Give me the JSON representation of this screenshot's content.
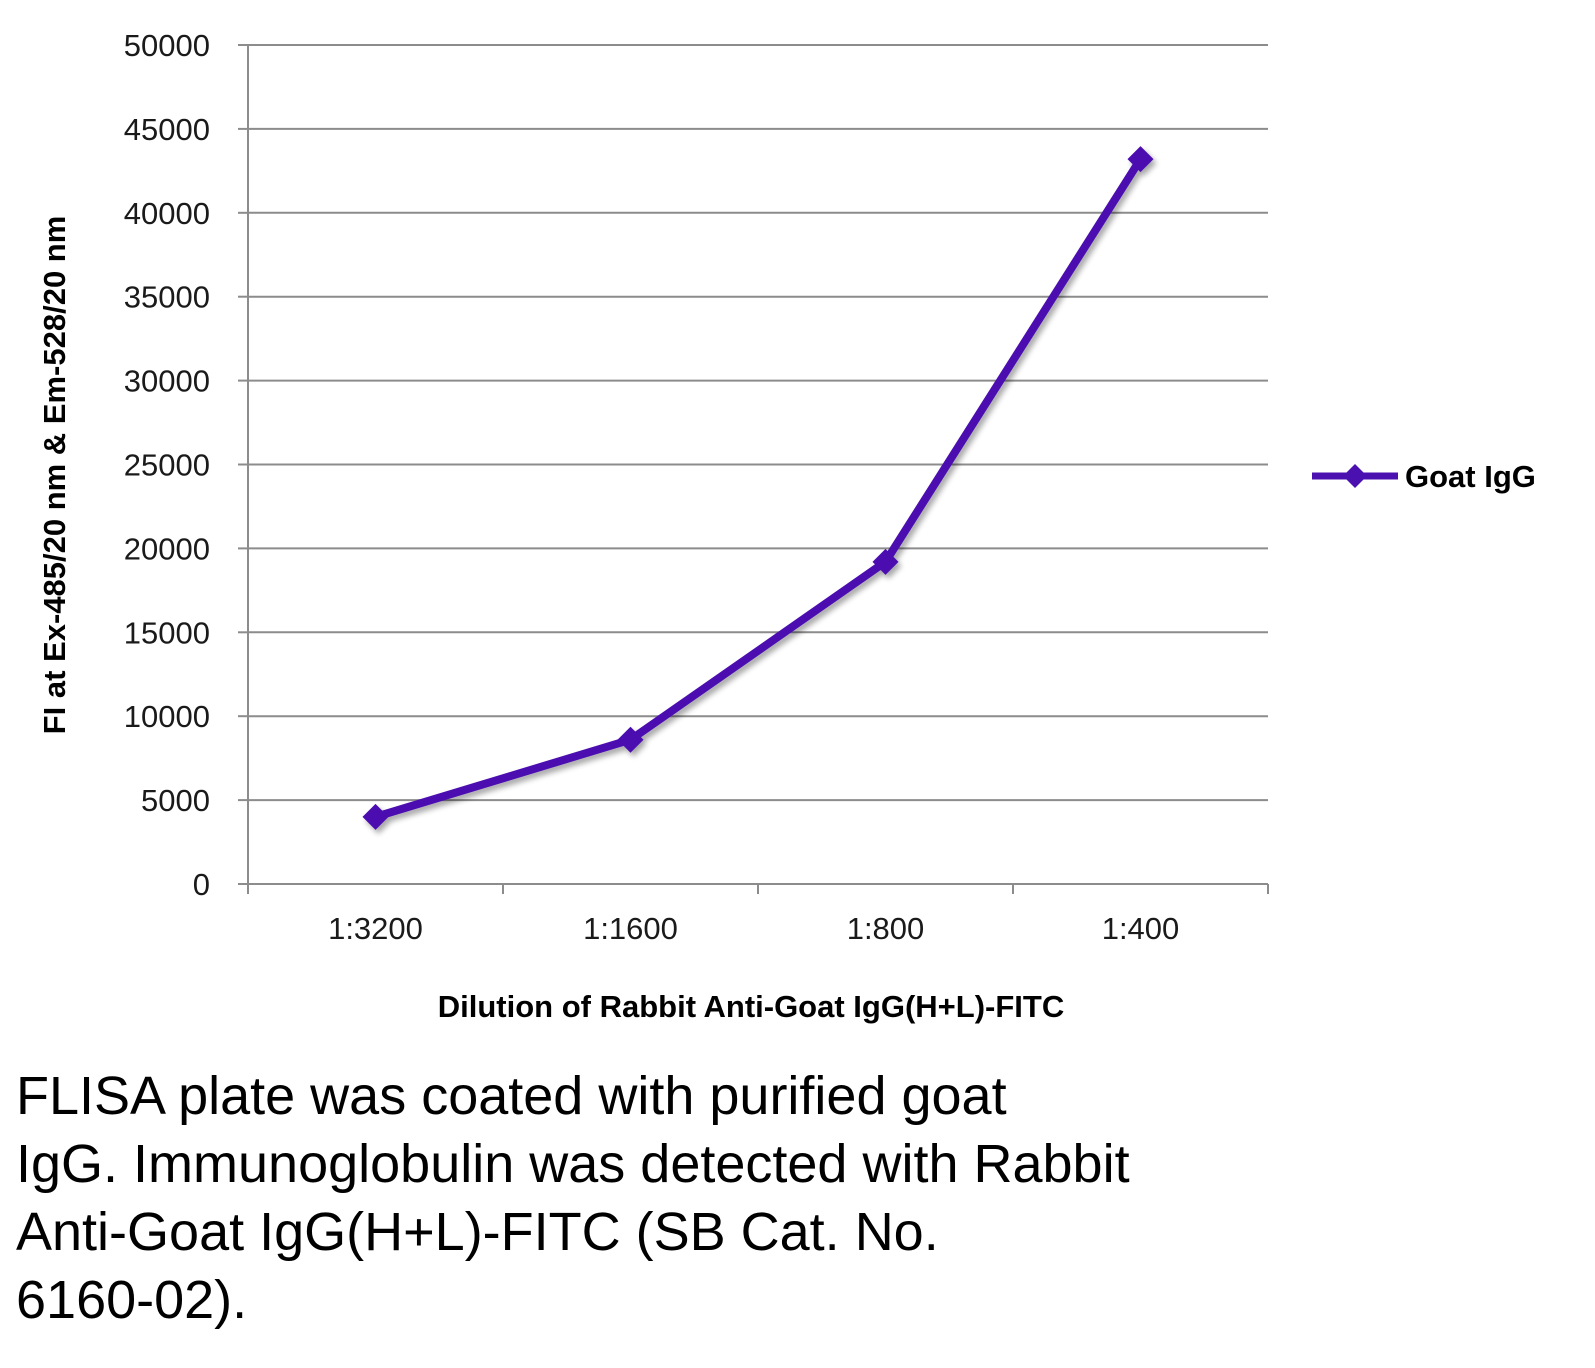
{
  "chart_data": {
    "type": "line",
    "categories": [
      "1:3200",
      "1:1600",
      "1:800",
      "1:400"
    ],
    "series": [
      {
        "name": "Goat IgG",
        "values": [
          4000,
          8600,
          19200,
          43200
        ],
        "color": "#4b10b0",
        "marker": "diamond"
      }
    ],
    "xlabel": "Dilution of Rabbit Anti-Goat IgG(H+L)-FITC",
    "ylabel": "FI at Ex-485/20 nm & Em-528/20 nm",
    "ylim": [
      0,
      50000
    ],
    "yticks": [
      "0",
      "5000",
      "10000",
      "15000",
      "20000",
      "25000",
      "30000",
      "35000",
      "40000",
      "45000",
      "50000"
    ],
    "grid": "horizontal",
    "legend_position": "right",
    "gridline_color": "#8c8c8c"
  },
  "caption": {
    "lines": [
      "FLISA plate was coated with purified goat",
      "IgG.  Immunoglobulin was detected with Rabbit",
      "Anti-Goat IgG(H+L)-FITC (SB Cat. No.",
      "6160-02)."
    ]
  }
}
